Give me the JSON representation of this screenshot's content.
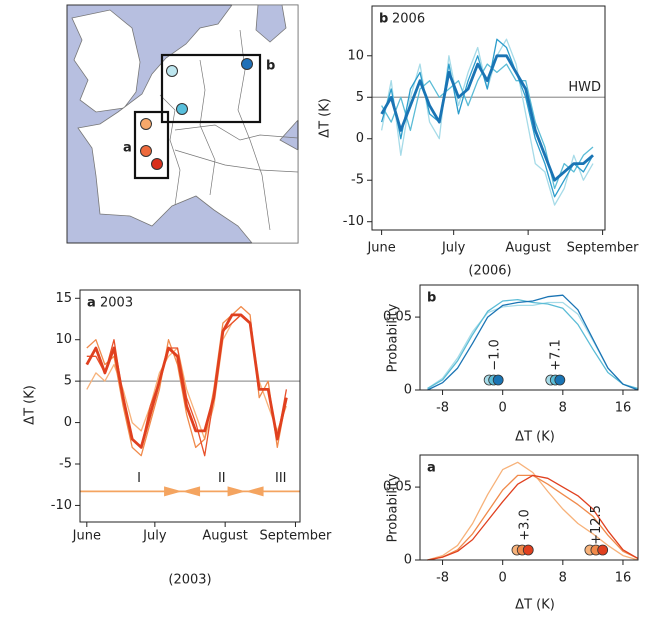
{
  "map": {
    "labels": [
      "a",
      "b"
    ]
  },
  "chart_data": [
    {
      "type": "line",
      "panel_label": "b",
      "title": "2006",
      "ylabel": "ΔT (K)",
      "xlabel": "(2006)",
      "x": [
        0,
        4,
        8,
        12,
        16,
        20,
        24,
        28,
        32,
        36,
        40,
        44,
        48,
        52,
        56,
        60,
        64,
        68,
        72,
        76,
        80,
        84,
        88
      ],
      "xlim": [
        -4,
        93
      ],
      "xticks": [
        {
          "value": 0,
          "label": "June"
        },
        {
          "value": 30,
          "label": "July"
        },
        {
          "value": 61,
          "label": "August"
        },
        {
          "value": 92,
          "label": "September"
        }
      ],
      "ylim": [
        -11,
        16
      ],
      "yticks": [
        -10,
        -5,
        0,
        5,
        10
      ],
      "reference_line": {
        "value": 5,
        "label": "HWD",
        "color": "#999999"
      },
      "series": [
        {
          "color": "#a6dbe8",
          "values": [
            1,
            7,
            -2,
            5,
            9,
            2,
            0,
            10,
            4,
            8,
            11,
            6,
            10,
            12,
            9,
            3,
            -3,
            -4,
            -8,
            -6,
            -2,
            -5,
            -3
          ]
        },
        {
          "color": "#5bbcd6",
          "values": [
            4,
            2,
            5,
            1,
            6,
            7,
            5,
            6,
            7,
            4,
            7,
            9,
            8,
            9,
            7,
            7,
            2,
            -1,
            -6,
            -3,
            -4,
            -2,
            -1
          ]
        },
        {
          "color": "#2b9ccb",
          "values": [
            2,
            6,
            0,
            6,
            8,
            3,
            2,
            9,
            3,
            7,
            10,
            6,
            12,
            11,
            8,
            5,
            0,
            -3,
            -7,
            -5,
            -3,
            -4,
            -2
          ]
        },
        {
          "color": "#1a74b4",
          "emphasis": true,
          "values": [
            3,
            5,
            1,
            4,
            7,
            4,
            2,
            8,
            5,
            6,
            9,
            7,
            10,
            10,
            8,
            6,
            1,
            -2,
            -5,
            -4,
            -3,
            -3,
            -2
          ]
        }
      ]
    },
    {
      "type": "line",
      "panel_label": "a",
      "title": "2003",
      "ylabel": "ΔT (K)",
      "xlabel": "(2003)",
      "x": [
        0,
        4,
        8,
        12,
        16,
        20,
        24,
        28,
        32,
        36,
        40,
        44,
        48,
        52,
        56,
        60,
        64,
        68,
        72,
        76,
        80,
        84,
        88
      ],
      "xlim": [
        -3,
        94
      ],
      "xticks": [
        {
          "value": 0,
          "label": "June"
        },
        {
          "value": 30,
          "label": "July"
        },
        {
          "value": 61,
          "label": "August"
        },
        {
          "value": 92,
          "label": "September"
        }
      ],
      "ylim": [
        -12,
        16
      ],
      "yticks": [
        -10,
        -5,
        0,
        5,
        10,
        15
      ],
      "reference_line": {
        "value": 5,
        "color": "#999999"
      },
      "phases": {
        "level": -8.3,
        "boundaries": [
          42,
          70
        ],
        "labels": [
          "I",
          "II",
          "III"
        ],
        "color": "#f4a460"
      },
      "series": [
        {
          "color": "#f7b27a",
          "values": [
            4,
            6,
            5,
            7,
            4,
            0,
            -1,
            2,
            6,
            8,
            9,
            4,
            1,
            -2,
            2,
            10,
            12,
            13,
            12,
            5,
            2,
            -1,
            2
          ]
        },
        {
          "color": "#f08a4b",
          "values": [
            9,
            10,
            7,
            8,
            2,
            -3,
            -4,
            0,
            4,
            10,
            7,
            1,
            -3,
            -2,
            4,
            12,
            13,
            14,
            13,
            3,
            5,
            -3,
            3
          ]
        },
        {
          "color": "#e8502a",
          "values": [
            8,
            8,
            6,
            10,
            3,
            -2,
            -3,
            2,
            5,
            9,
            9,
            3,
            0,
            -4,
            3,
            11,
            12,
            13,
            12,
            4,
            4,
            -2,
            4
          ]
        },
        {
          "color": "#e0401f",
          "emphasis": true,
          "values": [
            7,
            9,
            6,
            9,
            3,
            -2,
            -3,
            1,
            5,
            9,
            8,
            2,
            -1,
            -1,
            3,
            11,
            13,
            13,
            12,
            4,
            4,
            -2,
            3
          ]
        }
      ]
    },
    {
      "type": "line",
      "panel_label": "b",
      "ylabel": "Probability",
      "xlabel": "ΔT (K)",
      "x": [
        -10,
        -8,
        -6,
        -4,
        -2,
        0,
        2,
        4,
        6,
        8,
        10,
        12,
        14,
        16,
        18
      ],
      "xlim": [
        -11,
        18
      ],
      "xticks": [
        -8,
        0,
        8,
        16
      ],
      "ylim": [
        0,
        0.072
      ],
      "yticks": [
        0,
        0.05
      ],
      "series": [
        {
          "color": "#a6dbe8",
          "values": [
            0.001,
            0.008,
            0.022,
            0.04,
            0.053,
            0.057,
            0.058,
            0.058,
            0.06,
            0.06,
            0.052,
            0.034,
            0.015,
            0.004,
            0.0
          ]
        },
        {
          "color": "#5bbcd6",
          "values": [
            0.001,
            0.007,
            0.02,
            0.038,
            0.054,
            0.061,
            0.062,
            0.06,
            0.059,
            0.056,
            0.045,
            0.028,
            0.012,
            0.004,
            0.001
          ]
        },
        {
          "color": "#1a74b4",
          "values": [
            0.0,
            0.005,
            0.015,
            0.032,
            0.05,
            0.058,
            0.06,
            0.061,
            0.064,
            0.065,
            0.055,
            0.035,
            0.015,
            0.004,
            0.0
          ]
        }
      ],
      "markers": {
        "x": [
          -1.8,
          -1.2,
          -0.6,
          6.4,
          7.0,
          7.6
        ],
        "colors": [
          "#a6dbe8",
          "#5bbcd6",
          "#1a74b4",
          "#a6dbe8",
          "#5bbcd6",
          "#1a74b4"
        ]
      },
      "means": {
        "values": [
          -1.0,
          7.1
        ],
        "value_labels": [
          "−1.0",
          "+7.1"
        ],
        "color": "#3b3b96"
      }
    },
    {
      "type": "line",
      "panel_label": "a",
      "ylabel": "Probability",
      "xlabel": "ΔT (K)",
      "x": [
        -10,
        -8,
        -6,
        -4,
        -2,
        0,
        2,
        4,
        6,
        8,
        10,
        12,
        14,
        16,
        18
      ],
      "xlim": [
        -11,
        18
      ],
      "xticks": [
        -8,
        0,
        8,
        16
      ],
      "ylim": [
        0,
        0.072
      ],
      "yticks": [
        0,
        0.05
      ],
      "series": [
        {
          "color": "#f7b27a",
          "values": [
            0.0,
            0.003,
            0.01,
            0.025,
            0.045,
            0.062,
            0.067,
            0.06,
            0.047,
            0.035,
            0.025,
            0.018,
            0.01,
            0.003,
            0.0
          ]
        },
        {
          "color": "#f08a4b",
          "values": [
            0.0,
            0.002,
            0.007,
            0.018,
            0.033,
            0.048,
            0.058,
            0.058,
            0.052,
            0.045,
            0.038,
            0.03,
            0.017,
            0.006,
            0.001
          ]
        },
        {
          "color": "#e0401f",
          "values": [
            0.0,
            0.002,
            0.006,
            0.014,
            0.027,
            0.04,
            0.052,
            0.058,
            0.056,
            0.05,
            0.044,
            0.035,
            0.02,
            0.007,
            0.001
          ]
        }
      ],
      "markers": {
        "x": [
          1.9,
          2.6,
          3.4,
          11.6,
          12.4,
          13.3
        ],
        "colors": [
          "#f7b27a",
          "#f08a4b",
          "#e0401f",
          "#f7b27a",
          "#f08a4b",
          "#e0401f"
        ]
      },
      "means": {
        "values": [
          3.0,
          12.5
        ],
        "value_labels": [
          "+3.0",
          "+12.5"
        ],
        "color": "#e8603c"
      }
    }
  ]
}
